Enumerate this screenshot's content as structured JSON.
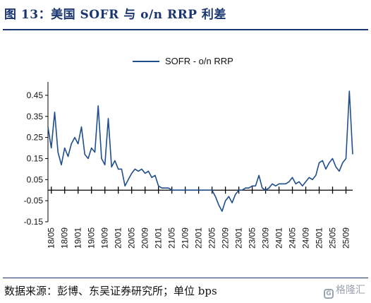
{
  "header": {
    "title": "图 13：美国 SOFR 与 o/n RRP 利差"
  },
  "footer": {
    "source": "数据来源：彭博、东吴证券研究所；单位 bps",
    "watermark": "格隆汇"
  },
  "colors": {
    "series": "#1f4e8c",
    "accent": "#1a3570",
    "axis": "#000000"
  },
  "chart_data": {
    "type": "line",
    "title": "",
    "xlabel": "",
    "ylabel": "",
    "ylim": [
      -0.15,
      0.5
    ],
    "yticks": [
      0.45,
      0.35,
      0.25,
      0.15,
      0.05,
      -0.05,
      -0.15
    ],
    "ytick_labels": [
      "0.45",
      "0.35",
      "0.25",
      "0.15",
      "0.05",
      "-0.05",
      "-0.15"
    ],
    "xticks": [
      "18/05",
      "18/09",
      "19/01",
      "19/05",
      "19/09",
      "20/01",
      "20/05",
      "20/09",
      "21/01",
      "21/05",
      "21/09",
      "22/01",
      "22/05",
      "22/09",
      "23/01",
      "23/05",
      "23/09",
      "24/01",
      "24/05",
      "24/09",
      "25/01",
      "25/05",
      "25/09"
    ],
    "x_range": [
      "2018-04",
      "2025-11"
    ],
    "grid": false,
    "legend_position": "top-center",
    "series": [
      {
        "name": "SOFR - o/n RRP",
        "x": [
          "2018-04",
          "2018-05",
          "2018-06",
          "2018-07",
          "2018-08",
          "2018-09",
          "2018-10",
          "2018-11",
          "2018-12",
          "2019-01",
          "2019-02",
          "2019-03",
          "2019-04",
          "2019-05",
          "2019-06",
          "2019-07",
          "2019-08",
          "2019-09",
          "2019-10",
          "2019-11",
          "2019-12",
          "2020-01",
          "2020-02",
          "2020-03",
          "2020-04",
          "2020-05",
          "2020-06",
          "2020-07",
          "2020-08",
          "2020-09",
          "2020-10",
          "2020-11",
          "2020-12",
          "2021-01",
          "2021-02",
          "2021-03",
          "2021-04",
          "2021-05",
          "2021-06",
          "2021-07",
          "2021-08",
          "2021-09",
          "2021-10",
          "2021-11",
          "2021-12",
          "2022-01",
          "2022-02",
          "2022-03",
          "2022-04",
          "2022-05",
          "2022-06",
          "2022-07",
          "2022-08",
          "2022-09",
          "2022-10",
          "2022-11",
          "2022-12",
          "2023-01",
          "2023-02",
          "2023-03",
          "2023-04",
          "2023-05",
          "2023-06",
          "2023-07",
          "2023-08",
          "2023-09",
          "2023-10",
          "2023-11",
          "2023-12",
          "2024-01",
          "2024-02",
          "2024-03",
          "2024-04",
          "2024-05",
          "2024-06",
          "2024-07",
          "2024-08",
          "2024-09",
          "2024-10",
          "2024-11",
          "2024-12",
          "2025-01",
          "2025-02",
          "2025-03",
          "2025-04",
          "2025-05",
          "2025-06",
          "2025-07",
          "2025-08",
          "2025-09",
          "2025-10",
          "2025-11"
        ],
        "values": [
          0.3,
          0.2,
          0.37,
          0.18,
          0.12,
          0.2,
          0.16,
          0.22,
          0.25,
          0.22,
          0.3,
          0.17,
          0.15,
          0.2,
          0.18,
          0.4,
          0.15,
          0.12,
          0.34,
          0.11,
          0.14,
          0.1,
          0.1,
          0.02,
          0.05,
          0.08,
          0.1,
          0.09,
          0.1,
          0.08,
          0.09,
          0.06,
          0.07,
          0.02,
          0.01,
          0.01,
          0.01,
          0.0,
          0.0,
          0.0,
          0.0,
          0.0,
          0.0,
          0.0,
          0.0,
          0.0,
          0.0,
          0.0,
          0.0,
          0.0,
          -0.03,
          -0.07,
          -0.1,
          -0.05,
          -0.03,
          -0.06,
          -0.02,
          0.0,
          0.0,
          0.01,
          0.01,
          0.02,
          0.02,
          0.07,
          0.01,
          0.0,
          0.01,
          0.03,
          0.02,
          0.03,
          0.03,
          0.03,
          0.04,
          0.06,
          0.03,
          0.04,
          0.02,
          0.04,
          0.06,
          0.05,
          0.07,
          0.13,
          0.14,
          0.1,
          0.13,
          0.15,
          0.11,
          0.09,
          0.13,
          0.15,
          0.47,
          0.17
        ]
      }
    ]
  }
}
